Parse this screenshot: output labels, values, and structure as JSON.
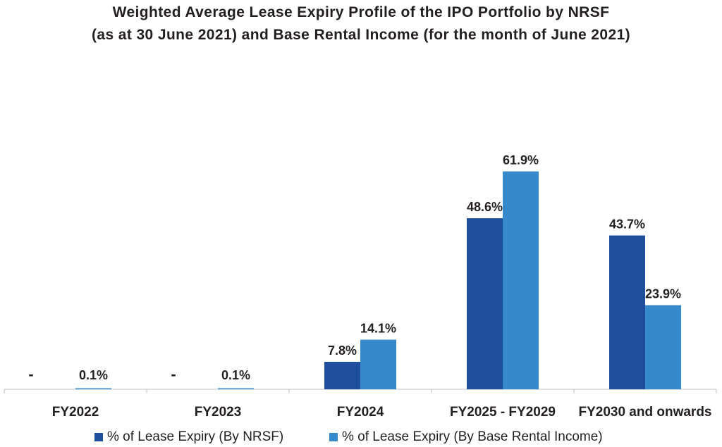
{
  "chart_data": {
    "type": "bar",
    "title": "Weighted Average Lease Expiry Profile of the IPO Portfolio by NRSF",
    "subtitle": "(as at 30 June 2021) and Base Rental Income (for the month of June 2021)",
    "categories": [
      "FY2022",
      "FY2023",
      "FY2024",
      "FY2025 - FY2029",
      "FY2030 and onwards"
    ],
    "series": [
      {
        "name": "% of Lease Expiry (By NRSF)",
        "color": "#1f4e9c",
        "values": [
          0,
          0,
          7.8,
          48.6,
          43.7
        ],
        "labels": [
          "-",
          "-",
          "7.8%",
          "48.6%",
          "43.7%"
        ]
      },
      {
        "name": "% of Lease Expiry (By Base Rental Income)",
        "color": "#3689cb",
        "values": [
          0.1,
          0.1,
          14.1,
          61.9,
          23.9
        ],
        "labels": [
          "0.1%",
          "0.1%",
          "14.1%",
          "61.9%",
          "23.9%"
        ]
      }
    ],
    "xlabel": "",
    "ylabel": "",
    "ylim": [
      0,
      70
    ],
    "grid": false,
    "legend": "bottom"
  }
}
